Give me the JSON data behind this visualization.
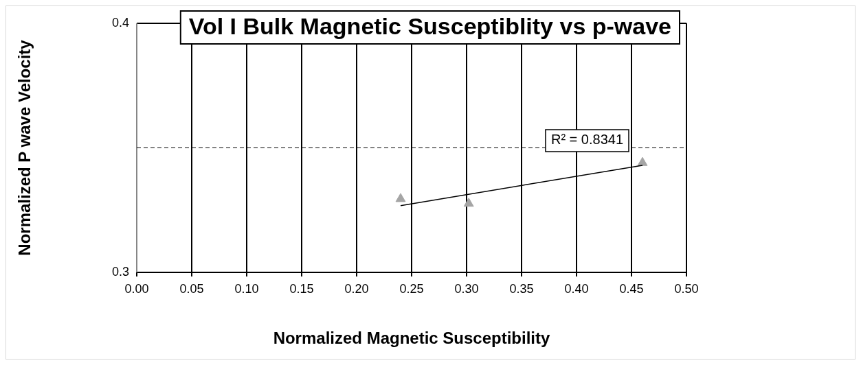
{
  "chart_data": {
    "type": "scatter",
    "title": "Vol I Bulk Magnetic Susceptiblity vs p-wave",
    "xlabel": "Normalized Magnetic Susceptibility",
    "ylabel": "Normalized P wave Velocity",
    "series": [
      {
        "type": "scatter",
        "color": "#a5a5a5",
        "marker": "triangle",
        "x": [
          0.24,
          0.302,
          0.46
        ],
        "values": [
          0.3295,
          0.3276,
          0.344
        ]
      },
      {
        "type": "line",
        "color": "#000000",
        "marker": "none",
        "line_style": "solid",
        "x": [
          0.24,
          0.46
        ],
        "values": [
          0.3268,
          0.343
        ]
      }
    ],
    "xlim": [
      0,
      0.5
    ],
    "xticks": [
      {
        "value": 0,
        "label": "0.00"
      },
      {
        "value": 0.05,
        "label": "0.05"
      },
      {
        "value": 0.1,
        "label": "0.10"
      },
      {
        "value": 0.15,
        "label": "0.15"
      },
      {
        "value": 0.2,
        "label": "0.20"
      },
      {
        "value": 0.25,
        "label": "0.25"
      },
      {
        "value": 0.3,
        "label": "0.30"
      },
      {
        "value": 0.35,
        "label": "0.35"
      },
      {
        "value": 0.4,
        "label": "0.40"
      },
      {
        "value": 0.45,
        "label": "0.45"
      },
      {
        "value": 0.5,
        "label": "0.50"
      }
    ],
    "ylim": [
      0.3,
      0.4
    ],
    "yticks": [
      0.3,
      0.4
    ],
    "grid": "x",
    "ref_lines": [
      {
        "axis": "y",
        "value": 0.35,
        "color": "#000000",
        "line_style": "dashed"
      }
    ],
    "annotations": [
      "R² = 0.8341"
    ]
  }
}
